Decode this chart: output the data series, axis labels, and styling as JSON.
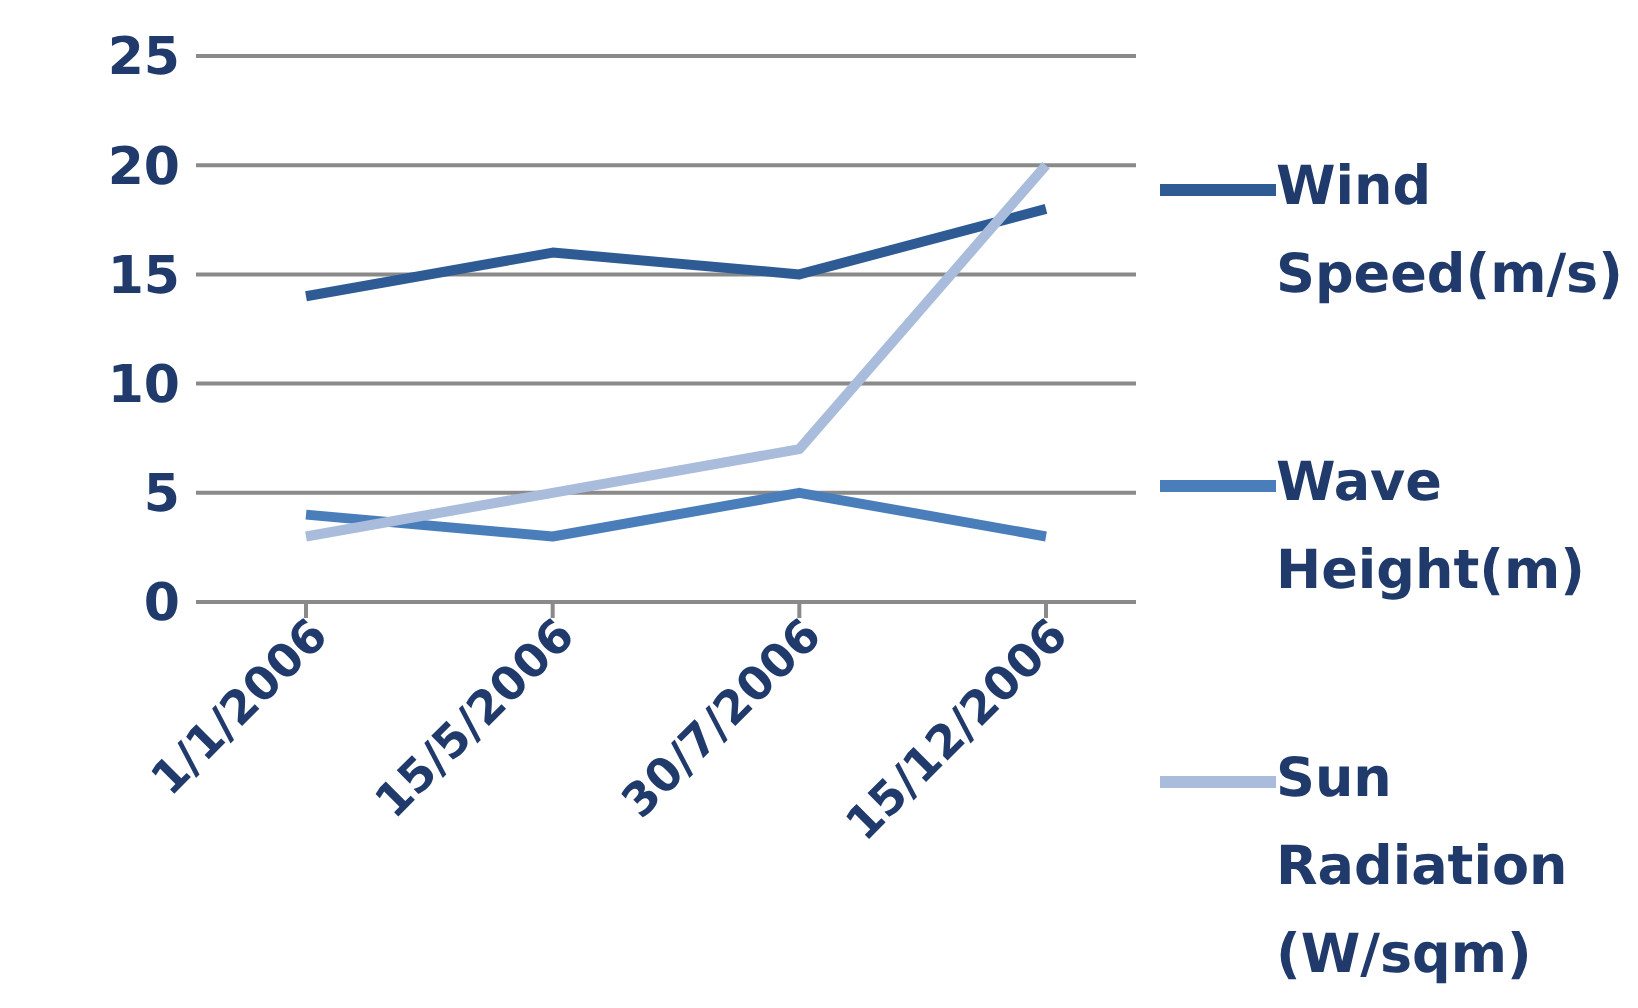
{
  "chart_data": {
    "type": "line",
    "categories": [
      "1/1/2006",
      "15/5/2006",
      "30/7/2006",
      "15/12/2006"
    ],
    "series": [
      {
        "name": "Wind Speed(m/s)",
        "color": "#2f5b95",
        "values": [
          14,
          16,
          15,
          18
        ]
      },
      {
        "name": "Wave Height(m)",
        "color": "#4a7ebb",
        "values": [
          4,
          3,
          5,
          3
        ]
      },
      {
        "name": "Sun Radiation (W/sqm)",
        "color": "#a9bcdc",
        "values": [
          3,
          5,
          7,
          20
        ]
      }
    ],
    "ylim": [
      0,
      25
    ],
    "yticks": [
      0,
      5,
      10,
      15,
      20,
      25
    ],
    "grid": "y",
    "legend": "right",
    "marker": "none",
    "line_style": "solid"
  }
}
